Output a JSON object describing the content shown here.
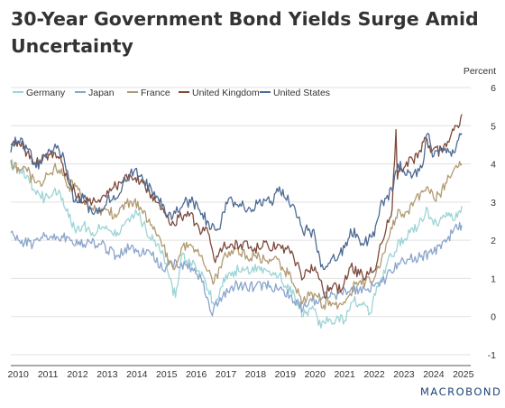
{
  "chart_data": {
    "type": "line",
    "title": "30-Year Government Bond Yields Surge Amid Uncertainty",
    "ylabel": "Percent",
    "xlabel": "",
    "ylim": [
      -1,
      6
    ],
    "xlim": [
      2009.75,
      2025.25
    ],
    "yticks": [
      -1,
      0,
      1,
      2,
      3,
      4,
      5,
      6
    ],
    "y_axis_side": "right",
    "xticks": [
      "2010",
      "2011",
      "2012",
      "2013",
      "2014",
      "2015",
      "2016",
      "2017",
      "2018",
      "2019",
      "2020",
      "2021",
      "2022",
      "2023",
      "2024",
      "2025"
    ],
    "grid": "horizontal",
    "legend_position": "top-left",
    "series": [
      {
        "name": "Germany",
        "color": "#9dd4d6",
        "x": [
          2009.75,
          2010.0,
          2010.3,
          2010.6,
          2010.9,
          2011.2,
          2011.5,
          2011.7,
          2011.9,
          2012.2,
          2012.5,
          2012.8,
          2013.0,
          2013.3,
          2013.5,
          2013.8,
          2014.0,
          2014.3,
          2014.6,
          2014.9,
          2015.1,
          2015.3,
          2015.5,
          2015.8,
          2016.1,
          2016.4,
          2016.6,
          2016.8,
          2017.0,
          2017.3,
          2017.6,
          2017.9,
          2018.2,
          2018.5,
          2018.8,
          2019.0,
          2019.3,
          2019.6,
          2019.8,
          2020.0,
          2020.2,
          2020.4,
          2020.7,
          2021.0,
          2021.3,
          2021.6,
          2021.9,
          2022.0,
          2022.2,
          2022.4,
          2022.5,
          2022.7,
          2022.8,
          2023.0,
          2023.2,
          2023.5,
          2023.8,
          2023.9,
          2024.0,
          2024.2,
          2024.4,
          2024.6,
          2024.8,
          2024.95
        ],
        "y": [
          4.0,
          3.9,
          3.7,
          3.2,
          3.1,
          3.3,
          3.1,
          2.6,
          2.3,
          2.4,
          2.2,
          2.3,
          2.3,
          2.1,
          2.4,
          2.6,
          2.7,
          2.3,
          2.0,
          1.6,
          1.0,
          0.5,
          1.6,
          1.4,
          1.2,
          0.7,
          0.3,
          0.7,
          1.1,
          1.2,
          1.2,
          1.3,
          1.3,
          1.1,
          1.1,
          0.8,
          0.6,
          0.0,
          0.2,
          0.2,
          -0.3,
          0.0,
          -0.1,
          -0.1,
          0.4,
          0.3,
          0.1,
          0.6,
          0.9,
          1.3,
          1.6,
          1.7,
          2.0,
          2.0,
          2.2,
          2.4,
          2.8,
          2.6,
          2.4,
          2.5,
          2.6,
          2.7,
          2.6,
          2.9
        ]
      },
      {
        "name": "Japan",
        "color": "#8aa5cc",
        "x": [
          2009.75,
          2010.0,
          2010.5,
          2010.9,
          2011.3,
          2011.8,
          2012.3,
          2012.8,
          2013.3,
          2013.6,
          2014.0,
          2014.5,
          2014.9,
          2015.1,
          2015.5,
          2015.9,
          2016.2,
          2016.5,
          2016.8,
          2017.2,
          2017.6,
          2018.0,
          2018.5,
          2018.9,
          2019.3,
          2019.6,
          2019.9,
          2020.3,
          2020.8,
          2021.2,
          2021.7,
          2022.0,
          2022.4,
          2022.8,
          2023.2,
          2023.6,
          2024.0,
          2024.5,
          2024.8,
          2024.95
        ],
        "y": [
          2.2,
          2.0,
          1.9,
          2.1,
          2.1,
          2.0,
          1.9,
          1.9,
          1.6,
          1.8,
          1.7,
          1.6,
          1.2,
          1.4,
          1.4,
          1.2,
          0.9,
          0.1,
          0.5,
          0.8,
          0.8,
          0.8,
          0.8,
          0.7,
          0.4,
          0.2,
          0.4,
          0.5,
          0.6,
          0.7,
          0.7,
          0.8,
          1.0,
          1.4,
          1.5,
          1.6,
          1.7,
          2.1,
          2.3,
          2.4
        ]
      },
      {
        "name": "France",
        "color": "#b29a72",
        "x": [
          2009.75,
          2009.85,
          2010.0,
          2010.3,
          2010.6,
          2010.9,
          2011.2,
          2011.5,
          2011.7,
          2011.9,
          2012.1,
          2012.4,
          2012.7,
          2013.0,
          2013.3,
          2013.6,
          2013.9,
          2014.2,
          2014.5,
          2014.8,
          2015.1,
          2015.3,
          2015.5,
          2015.8,
          2016.1,
          2016.4,
          2016.6,
          2016.8,
          2017.1,
          2017.4,
          2017.7,
          2018.0,
          2018.3,
          2018.6,
          2018.9,
          2019.1,
          2019.3,
          2019.6,
          2019.9,
          2020.1,
          2020.3,
          2020.5,
          2020.8,
          2021.1,
          2021.4,
          2021.7,
          2022.0,
          2022.2,
          2022.4,
          2022.6,
          2022.8,
          2023.0,
          2023.3,
          2023.6,
          2023.8,
          2024.0,
          2024.2,
          2024.4,
          2024.6,
          2024.8,
          2024.95
        ],
        "y": [
          4.1,
          3.9,
          3.9,
          3.8,
          3.5,
          3.6,
          3.9,
          3.7,
          3.4,
          3.5,
          3.2,
          2.9,
          2.7,
          2.8,
          2.6,
          3.0,
          3.0,
          2.7,
          2.4,
          2.0,
          1.4,
          1.3,
          1.8,
          1.9,
          1.6,
          1.2,
          0.9,
          1.3,
          1.7,
          1.8,
          1.6,
          1.6,
          1.5,
          1.5,
          1.3,
          1.1,
          0.8,
          0.4,
          0.6,
          0.5,
          0.3,
          0.4,
          0.3,
          0.5,
          0.9,
          0.9,
          1.0,
          1.3,
          1.9,
          2.3,
          2.8,
          2.6,
          2.9,
          3.3,
          3.4,
          3.1,
          3.2,
          3.5,
          3.7,
          3.9,
          4.0
        ]
      },
      {
        "name": "United Kingdom",
        "color": "#7d4a3c",
        "x": [
          2009.75,
          2009.85,
          2010.0,
          2010.3,
          2010.6,
          2010.9,
          2011.2,
          2011.5,
          2011.7,
          2011.9,
          2012.2,
          2012.5,
          2012.8,
          2013.0,
          2013.3,
          2013.6,
          2013.9,
          2014.2,
          2014.5,
          2014.8,
          2015.0,
          2015.2,
          2015.5,
          2015.8,
          2016.1,
          2016.4,
          2016.6,
          2016.9,
          2017.2,
          2017.5,
          2017.8,
          2018.1,
          2018.4,
          2018.7,
          2019.0,
          2019.3,
          2019.6,
          2019.8,
          2020.0,
          2020.3,
          2020.6,
          2020.9,
          2021.2,
          2021.5,
          2021.8,
          2022.0,
          2022.2,
          2022.4,
          2022.6,
          2022.73,
          2022.78,
          2022.85,
          2023.0,
          2023.3,
          2023.5,
          2023.7,
          2023.9,
          2024.0,
          2024.3,
          2024.6,
          2024.8,
          2024.95
        ],
        "y": [
          4.5,
          4.6,
          4.6,
          4.3,
          4.0,
          4.2,
          4.3,
          4.0,
          3.5,
          3.3,
          3.0,
          3.0,
          3.1,
          3.3,
          3.4,
          3.7,
          3.6,
          3.5,
          3.2,
          2.8,
          2.6,
          2.5,
          2.6,
          2.7,
          2.3,
          2.2,
          1.5,
          1.8,
          1.9,
          1.9,
          1.8,
          1.8,
          1.9,
          1.8,
          1.8,
          1.5,
          1.0,
          1.2,
          1.3,
          0.6,
          0.8,
          0.7,
          1.3,
          1.1,
          1.1,
          1.2,
          1.9,
          2.3,
          2.8,
          4.9,
          3.6,
          3.8,
          3.9,
          4.1,
          4.3,
          4.7,
          4.3,
          4.4,
          4.3,
          4.8,
          5.0,
          5.3
        ]
      },
      {
        "name": "United States",
        "color": "#4e6b94",
        "x": [
          2009.75,
          2009.9,
          2010.0,
          2010.3,
          2010.6,
          2010.9,
          2011.2,
          2011.5,
          2011.7,
          2011.9,
          2012.2,
          2012.5,
          2012.8,
          2013.0,
          2013.3,
          2013.6,
          2013.9,
          2014.2,
          2014.5,
          2014.8,
          2015.0,
          2015.3,
          2015.6,
          2015.9,
          2016.2,
          2016.5,
          2016.8,
          2017.0,
          2017.3,
          2017.6,
          2017.9,
          2018.1,
          2018.4,
          2018.6,
          2018.8,
          2019.0,
          2019.3,
          2019.6,
          2019.8,
          2020.0,
          2020.2,
          2020.5,
          2020.8,
          2021.0,
          2021.2,
          2021.5,
          2021.8,
          2022.0,
          2022.2,
          2022.4,
          2022.6,
          2022.8,
          2023.0,
          2023.3,
          2023.6,
          2023.8,
          2024.0,
          2024.3,
          2024.6,
          2024.8,
          2024.95
        ],
        "y": [
          4.3,
          4.7,
          4.6,
          4.4,
          3.9,
          4.2,
          4.4,
          4.3,
          3.6,
          3.0,
          3.1,
          2.7,
          2.8,
          3.1,
          3.1,
          3.6,
          3.8,
          3.6,
          3.3,
          3.1,
          2.6,
          2.7,
          3.0,
          3.0,
          2.7,
          2.3,
          2.3,
          3.0,
          3.0,
          2.9,
          2.8,
          3.0,
          3.1,
          3.0,
          3.4,
          3.1,
          2.9,
          2.2,
          2.3,
          2.1,
          1.3,
          1.4,
          1.6,
          1.8,
          2.3,
          2.0,
          2.0,
          2.1,
          2.9,
          3.1,
          3.3,
          4.0,
          3.8,
          3.7,
          3.9,
          4.8,
          4.2,
          4.4,
          4.2,
          4.6,
          4.8
        ]
      }
    ]
  },
  "brand": {
    "label": "MACROBOND",
    "color": "#1e4478"
  }
}
